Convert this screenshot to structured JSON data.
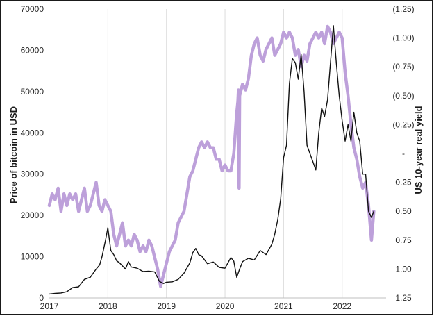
{
  "chart_data": {
    "type": "line",
    "title": "",
    "xlabel": "",
    "ylabel": "Price of bitcoin in USD",
    "y2label": "US 10-year real yield",
    "xlim": [
      2017.0,
      2022.75
    ],
    "ylim": [
      0,
      70000
    ],
    "y2lim": [
      -1.25,
      1.25
    ],
    "y2_reversed": true,
    "x_ticks": [
      2017,
      2018,
      2019,
      2020,
      2021,
      2022
    ],
    "x_tick_labels": [
      "2017",
      "2018",
      "2019",
      "2020",
      "2021",
      "2022"
    ],
    "y_ticks": [
      0,
      10000,
      20000,
      30000,
      40000,
      50000,
      60000,
      70000
    ],
    "y_tick_labels": [
      "0",
      "10000",
      "20000",
      "30000",
      "40000",
      "50000",
      "60000",
      "70000"
    ],
    "y2_ticks": [
      -1.25,
      -1.0,
      -0.75,
      -0.5,
      -0.25,
      0,
      0.25,
      0.5,
      0.75,
      1.0,
      1.25
    ],
    "y2_tick_labels": [
      "(1.25)",
      "(1.00)",
      "(0.75)",
      "(0.50)",
      "(0.25)",
      "-",
      "0.25",
      "0.50",
      "0.75",
      "1.00",
      "1.25"
    ],
    "grid": "vertical",
    "legend": "none",
    "series": [
      {
        "axis": "left",
        "color": "#111111",
        "x": [
          2017.0,
          2017.1,
          2017.2,
          2017.3,
          2017.4,
          2017.5,
          2017.6,
          2017.7,
          2017.8,
          2017.86,
          2017.9,
          2017.96,
          2018.0,
          2018.05,
          2018.1,
          2018.15,
          2018.2,
          2018.3,
          2018.35,
          2018.4,
          2018.5,
          2018.6,
          2018.7,
          2018.8,
          2018.88,
          2018.95,
          2019.0,
          2019.1,
          2019.2,
          2019.3,
          2019.4,
          2019.45,
          2019.5,
          2019.55,
          2019.6,
          2019.7,
          2019.8,
          2019.9,
          2020.0,
          2020.1,
          2020.15,
          2020.2,
          2020.25,
          2020.3,
          2020.4,
          2020.5,
          2020.6,
          2020.7,
          2020.8,
          2020.85,
          2020.9,
          2020.95,
          2021.0,
          2021.05,
          2021.1,
          2021.15,
          2021.2,
          2021.25,
          2021.3,
          2021.35,
          2021.4,
          2021.45,
          2021.5,
          2021.55,
          2021.6,
          2021.65,
          2021.7,
          2021.75,
          2021.8,
          2021.85,
          2021.9,
          2021.95,
          2022.0,
          2022.05,
          2022.1,
          2022.15,
          2022.2,
          2022.25,
          2022.3,
          2022.35,
          2022.4,
          2022.45,
          2022.5,
          2022.54
        ],
        "y": [
          950,
          1100,
          1200,
          1500,
          2500,
          2700,
          4500,
          5000,
          7000,
          8000,
          10000,
          14000,
          17000,
          11500,
          10500,
          9000,
          8500,
          7000,
          8800,
          7500,
          7200,
          6400,
          6500,
          6300,
          4000,
          3500,
          3800,
          3900,
          4500,
          6000,
          8500,
          11000,
          12000,
          10500,
          10200,
          8300,
          8700,
          7400,
          7200,
          9800,
          8900,
          5000,
          7000,
          8800,
          9600,
          9200,
          11500,
          10500,
          13000,
          15500,
          19000,
          24000,
          34000,
          37000,
          52000,
          58000,
          57000,
          53000,
          59000,
          50000,
          37000,
          35000,
          33000,
          31000,
          40000,
          46000,
          44000,
          48000,
          57000,
          66000,
          57000,
          49000,
          43000,
          38000,
          42000,
          38000,
          45000,
          40000,
          38000,
          30000,
          30000,
          21000,
          19500,
          21000
        ]
      },
      {
        "axis": "right",
        "color": "#bda0da",
        "x": [
          2017.0,
          2017.05,
          2017.1,
          2017.15,
          2017.2,
          2017.25,
          2017.3,
          2017.35,
          2017.4,
          2017.45,
          2017.5,
          2017.55,
          2017.6,
          2017.65,
          2017.7,
          2017.75,
          2017.8,
          2017.85,
          2017.9,
          2017.95,
          2018.0,
          2018.05,
          2018.1,
          2018.15,
          2018.2,
          2018.25,
          2018.3,
          2018.35,
          2018.4,
          2018.45,
          2018.5,
          2018.55,
          2018.6,
          2018.65,
          2018.7,
          2018.75,
          2018.8,
          2018.85,
          2018.9,
          2018.95,
          2019.0,
          2019.05,
          2019.1,
          2019.15,
          2019.2,
          2019.25,
          2019.3,
          2019.35,
          2019.4,
          2019.45,
          2019.5,
          2019.55,
          2019.6,
          2019.65,
          2019.7,
          2019.75,
          2019.8,
          2019.85,
          2019.9,
          2019.95,
          2020.0,
          2020.05,
          2020.1,
          2020.15,
          2020.2,
          2020.22,
          2020.23,
          2020.24,
          2020.25,
          2020.3,
          2020.35,
          2020.4,
          2020.45,
          2020.5,
          2020.55,
          2020.6,
          2020.65,
          2020.7,
          2020.75,
          2020.8,
          2020.85,
          2020.9,
          2020.95,
          2021.0,
          2021.05,
          2021.1,
          2021.15,
          2021.2,
          2021.25,
          2021.3,
          2021.35,
          2021.4,
          2021.45,
          2021.5,
          2021.55,
          2021.6,
          2021.65,
          2021.7,
          2021.75,
          2021.8,
          2021.85,
          2021.9,
          2021.95,
          2022.0,
          2022.05,
          2022.1,
          2022.15,
          2022.2,
          2022.25,
          2022.3,
          2022.35,
          2022.4,
          2022.45,
          2022.5,
          2022.54
        ],
        "y": [
          0.45,
          0.35,
          0.4,
          0.3,
          0.5,
          0.35,
          0.45,
          0.35,
          0.4,
          0.35,
          0.5,
          0.4,
          0.3,
          0.5,
          0.45,
          0.35,
          0.25,
          0.45,
          0.5,
          0.4,
          0.45,
          0.5,
          0.7,
          0.8,
          0.7,
          0.6,
          0.8,
          0.75,
          0.8,
          0.7,
          0.75,
          0.85,
          0.8,
          0.85,
          0.75,
          0.8,
          0.9,
          1.0,
          1.15,
          1.05,
          0.95,
          0.85,
          0.8,
          0.75,
          0.6,
          0.55,
          0.5,
          0.35,
          0.2,
          0.15,
          0.05,
          -0.05,
          -0.1,
          -0.05,
          -0.1,
          -0.05,
          -0.05,
          0.05,
          0.05,
          0.15,
          0.1,
          0.15,
          0.15,
          0.0,
          -0.35,
          -0.45,
          -0.55,
          0.3,
          -0.5,
          -0.6,
          -0.55,
          -0.65,
          -0.85,
          -0.95,
          -1.0,
          -0.85,
          -0.8,
          -0.9,
          -0.95,
          -1.0,
          -0.85,
          -0.9,
          -0.95,
          -1.05,
          -1.0,
          -1.05,
          -1.0,
          -0.85,
          -0.9,
          -0.75,
          -0.85,
          -0.8,
          -0.95,
          -1.0,
          -1.05,
          -1.0,
          -1.05,
          -0.95,
          -1.1,
          -1.05,
          -0.95,
          -1.0,
          -1.05,
          -1.0,
          -0.7,
          -0.5,
          -0.25,
          -0.05,
          0.05,
          0.2,
          0.3,
          0.25,
          0.45,
          0.75,
          0.5
        ]
      }
    ]
  }
}
